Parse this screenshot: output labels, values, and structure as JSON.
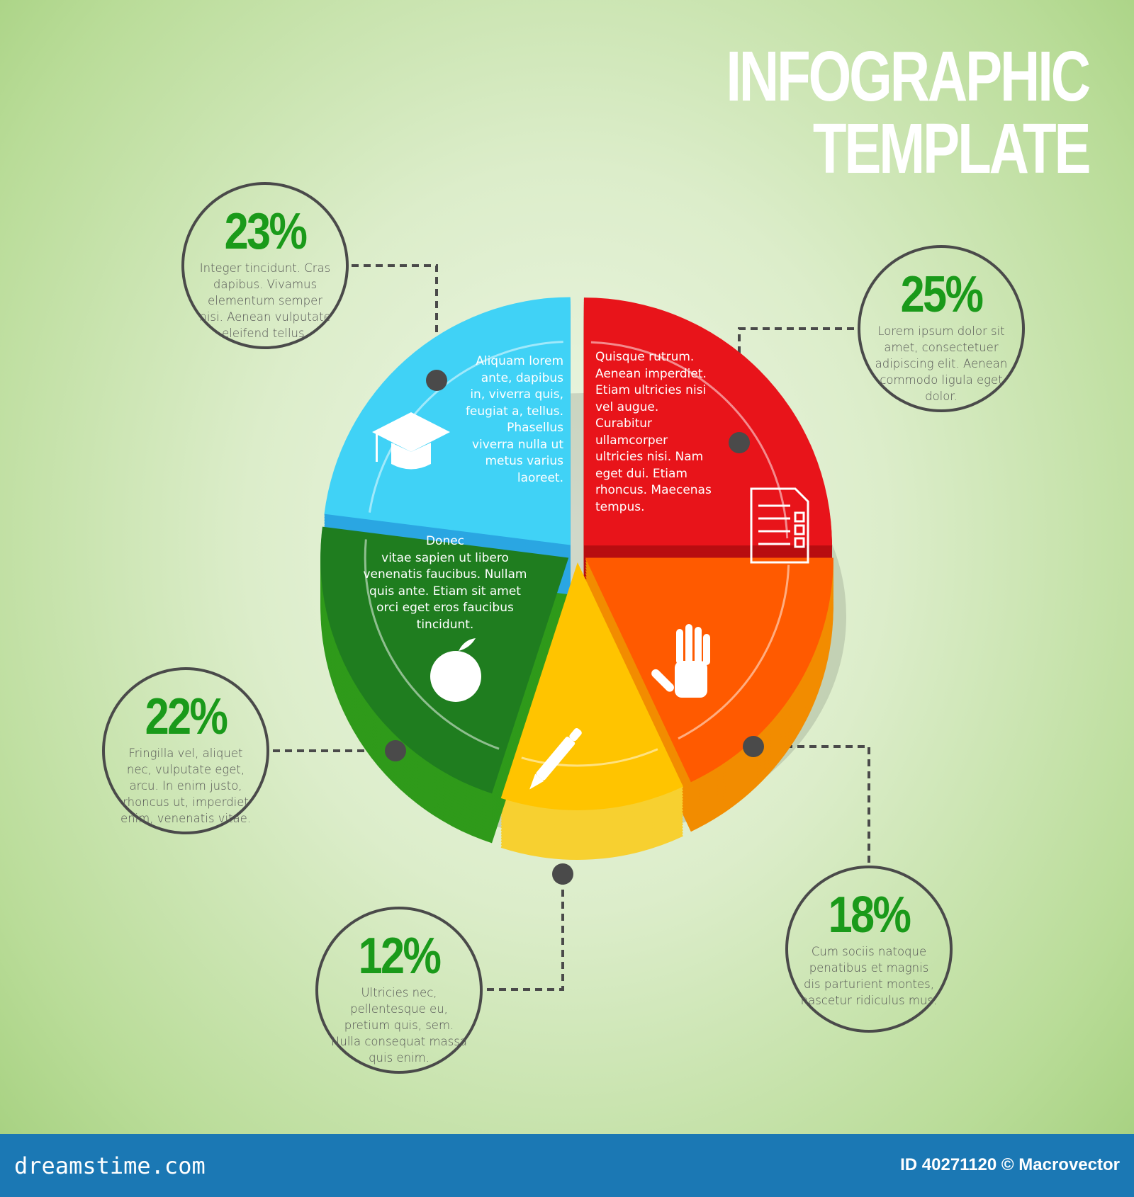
{
  "title": {
    "line1": "INFOGRAPHIC",
    "line2": "TEMPLATE"
  },
  "chart_data": {
    "type": "pie",
    "style": "3d-exploded",
    "slices": [
      {
        "label": "25%",
        "value": 25,
        "color": "#e8141a",
        "side_color": "#b80d10",
        "icon": "document-checklist-icon",
        "slice_text": "Quisque rutrum.\nAenean imperdiet.\nEtiam ultricies nisi\nvel augue.\nCurabitur\nullamcorper\nultricies nisi. Nam\neget dui. Etiam\nrhoncus. Maecenas\ntempus.",
        "description": "Lorem ipsum dolor sit amet, consectetuer adipiscing elit. Aenean commodo ligula eget dolor."
      },
      {
        "label": "18%",
        "value": 18,
        "color": "#ff5a00",
        "side_color": "#f28c00",
        "icon": "hand-icon",
        "description": "Cum sociis natoque penatibus et magnis dis parturient montes, nascetur ridiculus mus."
      },
      {
        "label": "12%",
        "value": 12,
        "color": "#ffc400",
        "side_color": "#f7d030",
        "icon": "pen-icon",
        "description": "Ultricies nec, pellentesque eu, pretium quis, sem. Nulla consequat massa quis enim."
      },
      {
        "label": "22%",
        "value": 22,
        "color": "#1f7d1f",
        "side_color": "#2f9a1a",
        "icon": "apple-icon",
        "slice_text": "Donec\nvitae sapien ut libero\nvenenatis faucibus. Nullam\nquis ante. Etiam sit amet\norci eget eros faucibus\ntincidunt.",
        "description": "Fringilla vel, aliquet nec, vulputate eget, arcu. In enim justo, rhoncus ut, imperdiet  enim, venenatis vitae."
      },
      {
        "label": "23%",
        "value": 23,
        "color": "#40d2f6",
        "side_color": "#2aa6e2",
        "icon": "graduation-cap-icon",
        "slice_text": "Aliquam lorem\nante, dapibus\nin, viverra quis,\nfeugiat a, tellus.\nPhasellus\nviverra nulla ut\nmetus varius\nlaoreet.",
        "description": "Integer tincidunt. Cras dapibus. Vivamus elementum semper nisi. Aenean vulputate eleifend tellus."
      }
    ]
  },
  "footer": {
    "brand": "dreamstime.com",
    "id_credit": "ID 40271120 © Macrovector",
    "color": "#1b78b4"
  }
}
